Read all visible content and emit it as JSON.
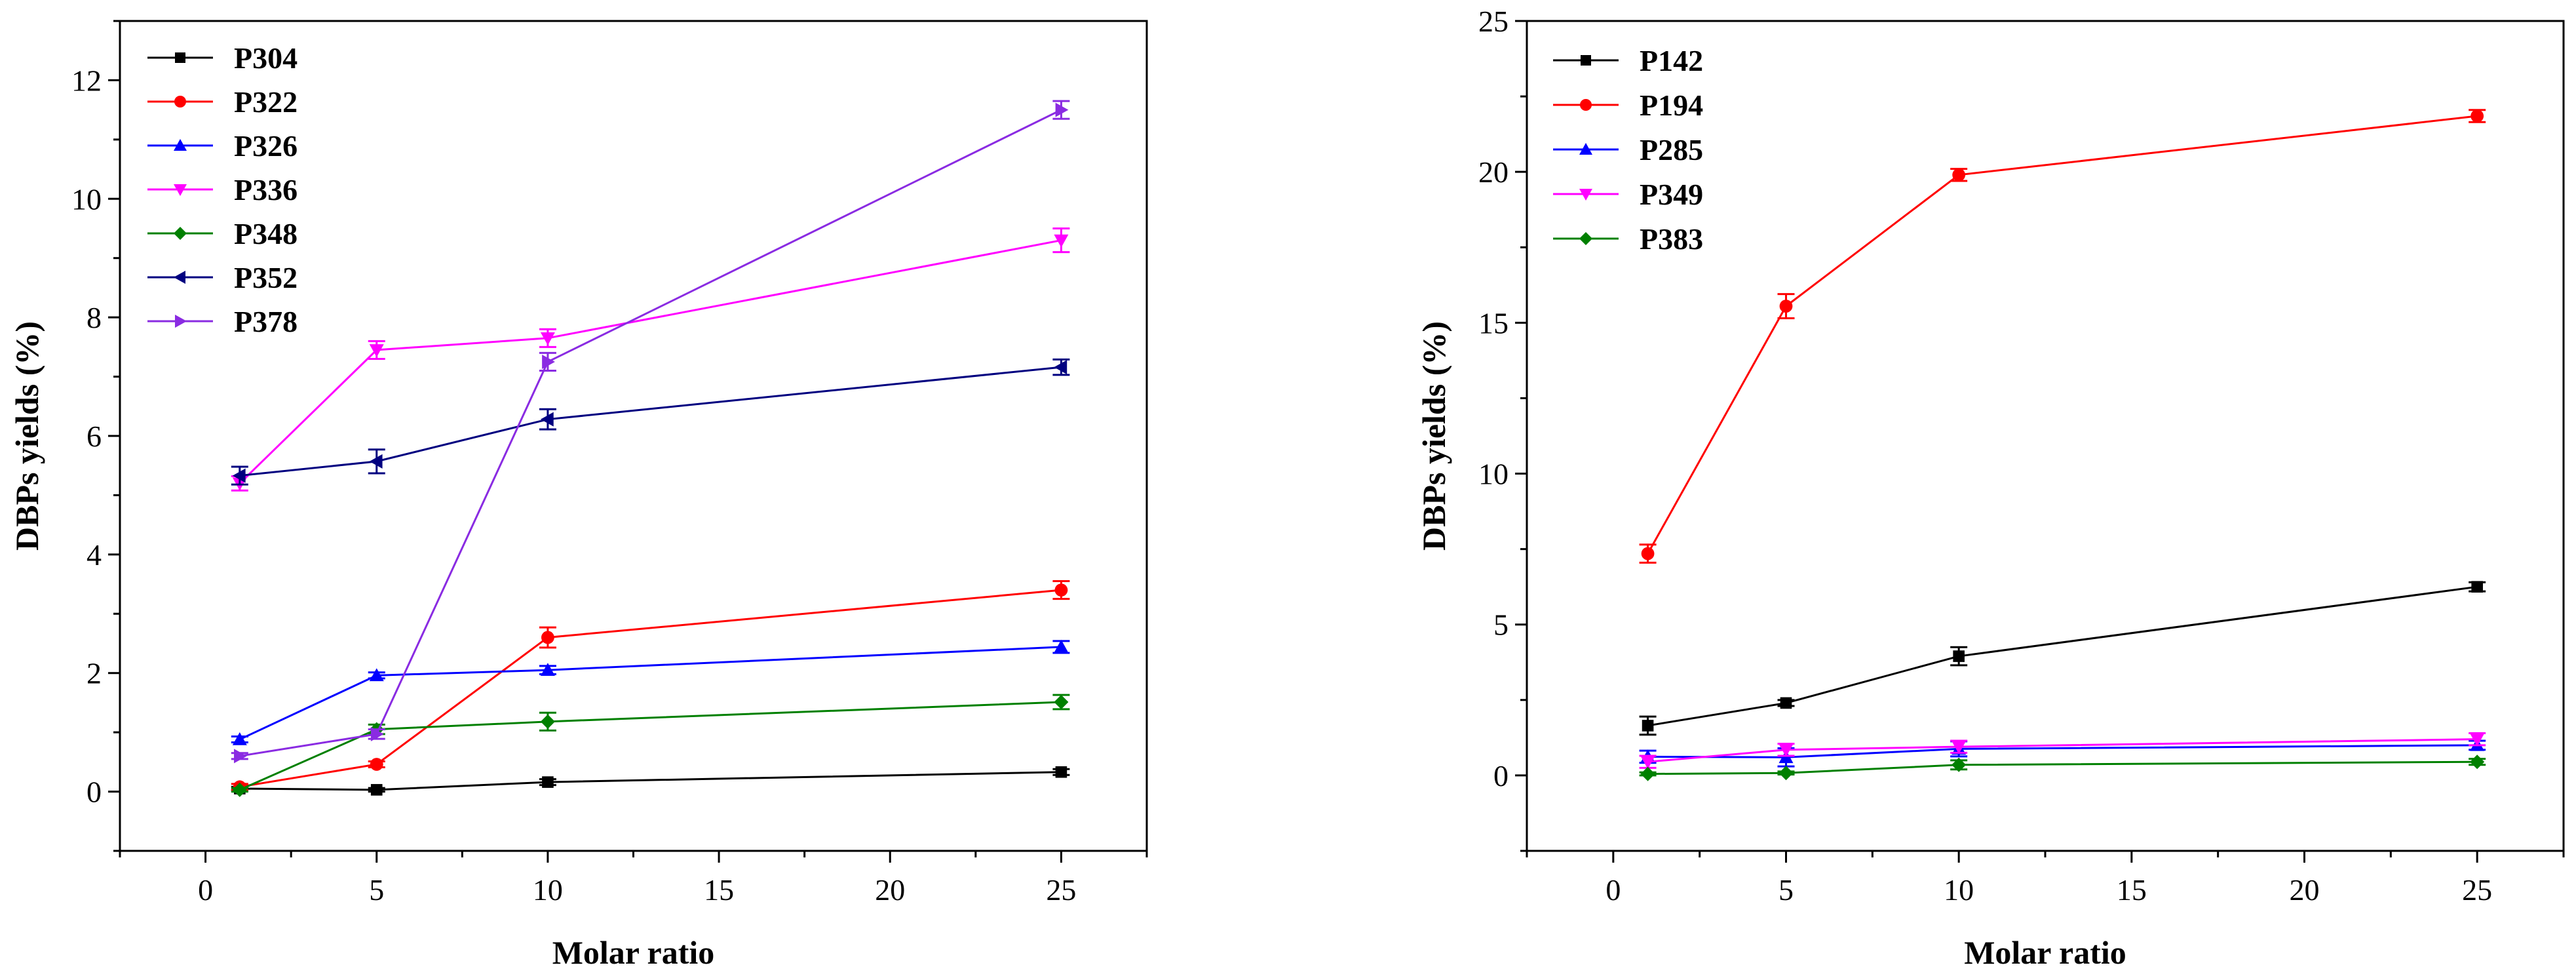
{
  "chart_data": [
    {
      "type": "line",
      "title": "",
      "xlabel": "Molar ratio",
      "ylabel": "DBPs yields (%)",
      "xlim": [
        -2.5,
        27.5
      ],
      "ylim": [
        -1,
        13
      ],
      "xticks": [
        0,
        5,
        10,
        15,
        20,
        25
      ],
      "yticks": [
        0,
        2,
        4,
        6,
        8,
        10,
        12
      ],
      "x": [
        1,
        5,
        10,
        25
      ],
      "legend_position": "top-left",
      "series": [
        {
          "name": "P304",
          "color": "#000000",
          "marker": "square",
          "values": [
            0.05,
            0.03,
            0.16,
            0.33
          ],
          "errors": [
            0.03,
            0.03,
            0.05,
            0.05
          ]
        },
        {
          "name": "P322",
          "color": "#ff0000",
          "marker": "circle",
          "values": [
            0.08,
            0.46,
            2.6,
            3.4
          ],
          "errors": [
            0.05,
            0.05,
            0.17,
            0.15
          ]
        },
        {
          "name": "P326",
          "color": "#0000ff",
          "marker": "triangle-up",
          "values": [
            0.88,
            1.96,
            2.05,
            2.44
          ],
          "errors": [
            0.05,
            0.05,
            0.07,
            0.1
          ]
        },
        {
          "name": "P336",
          "color": "#ff00ff",
          "marker": "triangle-down",
          "values": [
            5.2,
            7.45,
            7.65,
            9.3
          ],
          "errors": [
            0.12,
            0.15,
            0.15,
            0.2
          ]
        },
        {
          "name": "P348",
          "color": "#008000",
          "marker": "diamond",
          "values": [
            0.03,
            1.05,
            1.18,
            1.51
          ],
          "errors": [
            0.03,
            0.08,
            0.15,
            0.12
          ]
        },
        {
          "name": "P352",
          "color": "#000080",
          "marker": "triangle-left",
          "values": [
            5.33,
            5.57,
            6.28,
            7.16
          ],
          "errors": [
            0.15,
            0.2,
            0.17,
            0.13
          ]
        },
        {
          "name": "P378",
          "color": "#8a2be2",
          "marker": "triangle-right",
          "values": [
            0.6,
            0.97,
            7.25,
            11.5
          ],
          "errors": [
            0.05,
            0.08,
            0.15,
            0.15
          ]
        }
      ]
    },
    {
      "type": "line",
      "title": "",
      "xlabel": "Molar ratio",
      "ylabel": "DBPs yields (%)",
      "xlim": [
        -2.5,
        27.5
      ],
      "ylim": [
        -2.5,
        25
      ],
      "xticks": [
        0,
        5,
        10,
        15,
        20,
        25
      ],
      "yticks": [
        0,
        5,
        10,
        15,
        20,
        25
      ],
      "x": [
        1,
        5,
        10,
        25
      ],
      "legend_position": "top-left",
      "series": [
        {
          "name": "P142",
          "color": "#000000",
          "marker": "square",
          "values": [
            1.65,
            2.4,
            3.95,
            6.25
          ],
          "errors": [
            0.3,
            0.1,
            0.3,
            0.15
          ]
        },
        {
          "name": "P194",
          "color": "#ff0000",
          "marker": "circle",
          "values": [
            7.35,
            15.55,
            19.9,
            21.85
          ],
          "errors": [
            0.3,
            0.4,
            0.2,
            0.2
          ]
        },
        {
          "name": "P285",
          "color": "#0000ff",
          "marker": "triangle-up",
          "values": [
            0.62,
            0.6,
            0.88,
            1.0
          ],
          "errors": [
            0.2,
            0.3,
            0.25,
            0.15
          ]
        },
        {
          "name": "P349",
          "color": "#ff00ff",
          "marker": "triangle-down",
          "values": [
            0.45,
            0.85,
            0.95,
            1.2
          ],
          "errors": [
            0.2,
            0.2,
            0.2,
            0.2
          ]
        },
        {
          "name": "P383",
          "color": "#008000",
          "marker": "diamond",
          "values": [
            0.05,
            0.08,
            0.35,
            0.45
          ],
          "errors": [
            0.05,
            0.05,
            0.15,
            0.1
          ]
        }
      ]
    }
  ]
}
